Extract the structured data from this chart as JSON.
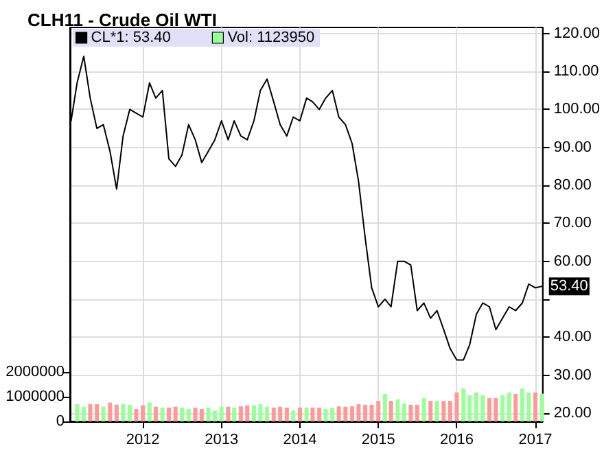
{
  "chart_data": {
    "type": "line",
    "title": "CLH11 - Crude Oil WTI",
    "x": [
      "2011-02",
      "2011-03",
      "2011-04",
      "2011-05",
      "2011-06",
      "2011-07",
      "2011-08",
      "2011-09",
      "2011-10",
      "2011-11",
      "2011-12",
      "2012-01",
      "2012-02",
      "2012-03",
      "2012-04",
      "2012-05",
      "2012-06",
      "2012-07",
      "2012-08",
      "2012-09",
      "2012-10",
      "2012-11",
      "2012-12",
      "2013-01",
      "2013-02",
      "2013-03",
      "2013-04",
      "2013-05",
      "2013-06",
      "2013-07",
      "2013-08",
      "2013-09",
      "2013-10",
      "2013-11",
      "2013-12",
      "2014-01",
      "2014-02",
      "2014-03",
      "2014-04",
      "2014-05",
      "2014-06",
      "2014-07",
      "2014-08",
      "2014-09",
      "2014-10",
      "2014-11",
      "2014-12",
      "2015-01",
      "2015-02",
      "2015-03",
      "2015-04",
      "2015-05",
      "2015-06",
      "2015-07",
      "2015-08",
      "2015-09",
      "2015-10",
      "2015-11",
      "2015-12",
      "2016-01",
      "2016-02",
      "2016-03",
      "2016-04",
      "2016-05",
      "2016-06",
      "2016-07",
      "2016-08",
      "2016-09",
      "2016-10",
      "2016-11",
      "2016-12",
      "2017-01",
      "2017-02"
    ],
    "series": [
      {
        "name": "CL*1: 53.40",
        "color": "#000000",
        "values": [
          97,
          107,
          114,
          103,
          95,
          96,
          89,
          79,
          93,
          100,
          99,
          98,
          107,
          103,
          105,
          87,
          85,
          88,
          96,
          92,
          86,
          89,
          92,
          97,
          92,
          97,
          93,
          92,
          97,
          105,
          108,
          102,
          96,
          93,
          98,
          97,
          103,
          102,
          100,
          103,
          105,
          98,
          96,
          91,
          81,
          66,
          53,
          48,
          50,
          48,
          60,
          60,
          59,
          47,
          49,
          45,
          47,
          42,
          37,
          34,
          34,
          38,
          46,
          49,
          48,
          42,
          45,
          48,
          47,
          49,
          54,
          53,
          53.4
        ]
      },
      {
        "name": "Vol: 1123950",
        "type": "bar",
        "axis": "y2",
        "color": "#99ff99",
        "values": [
          null,
          700000,
          590000,
          700000,
          700000,
          590000,
          760000,
          670000,
          700000,
          670000,
          500000,
          650000,
          760000,
          590000,
          560000,
          560000,
          590000,
          560000,
          500000,
          560000,
          500000,
          560000,
          440000,
          590000,
          590000,
          560000,
          610000,
          650000,
          650000,
          700000,
          590000,
          560000,
          590000,
          560000,
          440000,
          560000,
          560000,
          560000,
          560000,
          500000,
          560000,
          610000,
          590000,
          610000,
          700000,
          670000,
          670000,
          830000,
          1110000,
          830000,
          890000,
          720000,
          670000,
          670000,
          940000,
          830000,
          830000,
          830000,
          830000,
          1170000,
          1330000,
          1060000,
          1170000,
          1060000,
          940000,
          940000,
          1060000,
          1170000,
          1110000,
          1330000,
          1170000,
          1170000,
          1120000
        ],
        "colors": [
          "#99ff99",
          "#99ff99",
          "#99ff99",
          "#ff9999",
          "#ff9999",
          "#99ff99",
          "#ff9999",
          "#ff9999",
          "#99ff99",
          "#99ff99",
          "#ff9999",
          "#ff9999",
          "#99ff99",
          "#ff9999",
          "#99ff99",
          "#ff9999",
          "#ff9999",
          "#99ff99",
          "#99ff99",
          "#ff9999",
          "#ff9999",
          "#99ff99",
          "#99ff99",
          "#99ff99",
          "#ff9999",
          "#99ff99",
          "#ff9999",
          "#ff9999",
          "#99ff99",
          "#99ff99",
          "#99ff99",
          "#ff9999",
          "#ff9999",
          "#ff9999",
          "#99ff99",
          "#ff9999",
          "#99ff99",
          "#ff9999",
          "#ff9999",
          "#99ff99",
          "#99ff99",
          "#ff9999",
          "#ff9999",
          "#ff9999",
          "#ff9999",
          "#ff9999",
          "#ff9999",
          "#ff9999",
          "#99ff99",
          "#ff9999",
          "#99ff99",
          "#99ff99",
          "#ff9999",
          "#ff9999",
          "#99ff99",
          "#ff9999",
          "#99ff99",
          "#ff9999",
          "#ff9999",
          "#ff9999",
          "#99ff99",
          "#99ff99",
          "#99ff99",
          "#99ff99",
          "#ff9999",
          "#ff9999",
          "#99ff99",
          "#99ff99",
          "#ff9999",
          "#99ff99",
          "#99ff99",
          "#ff9999",
          "#99ff99"
        ]
      }
    ],
    "xlim": [
      "2011-01-27",
      "2017-02-04"
    ],
    "xticks": [
      {
        "value": "2012",
        "label": "2012"
      },
      {
        "value": "2013",
        "label": "2013"
      },
      {
        "value": "2014",
        "label": "2014"
      },
      {
        "value": "2015",
        "label": "2015"
      },
      {
        "value": "2016",
        "label": "2016"
      },
      {
        "value": "2017",
        "label": "2017"
      }
    ],
    "ylim": [
      17.8,
      121.6
    ],
    "yticks": [
      {
        "value": 20,
        "label": "20.00"
      },
      {
        "value": 30,
        "label": "30.00"
      },
      {
        "value": 40,
        "label": "40.00"
      },
      {
        "value": 50,
        "label": null
      },
      {
        "value": 60,
        "label": "60.00"
      },
      {
        "value": 70,
        "label": "70.00"
      },
      {
        "value": 80,
        "label": "80.00"
      },
      {
        "value": 90,
        "label": "90.00"
      },
      {
        "value": 100,
        "label": "100.00"
      },
      {
        "value": 110,
        "label": "110.00"
      },
      {
        "value": 120,
        "label": "120.00"
      }
    ],
    "y2lim": [
      0,
      15900000
    ],
    "y2ticks": [
      0,
      1000000,
      2000000
    ],
    "annotations": [
      {
        "text": "53.40",
        "x": "2017-02",
        "y": 53.4
      }
    ],
    "grid": true,
    "legend": "top left",
    "marker": "none",
    "line_style": "solid"
  }
}
